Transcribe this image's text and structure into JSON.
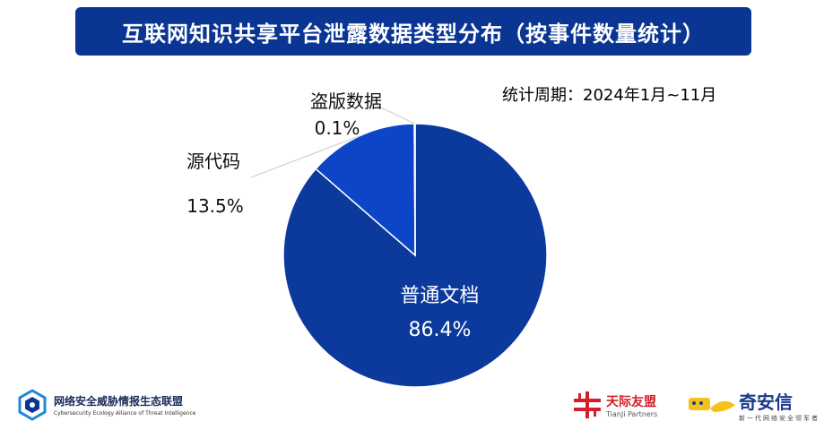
{
  "title": "互联网知识共享平台泄露数据类型分布（按事件数量统计）",
  "period": "统计周期：2024年1月~11月",
  "chart_data": {
    "type": "pie",
    "start_angle_deg": 0,
    "slices": [
      {
        "label": "普通文档",
        "value": 86.4,
        "value_label": "86.4%",
        "color": "#0b3a9c",
        "label_color": "#ffffff"
      },
      {
        "label": "源代码",
        "value": 13.5,
        "value_label": "13.5%",
        "color": "#0c45c8",
        "label_color": "#111111"
      },
      {
        "label": "盗版数据",
        "value": 0.1,
        "value_label": "0.1%",
        "color": "#1c55d8",
        "label_color": "#111111"
      }
    ]
  },
  "footer": {
    "left_org": "网络安全威胁情报生态联盟",
    "left_org_en": "Cybersecurity Ecology Alliance of Threat Intelligence",
    "tianji": "天际友盟",
    "tianji_en": "TianJi Partners",
    "qax": "奇安信",
    "qax_sub": "新一代网络安全领军者",
    "colors": {
      "navy": "#0a3592",
      "red": "#d3202a",
      "qax_yellow": "#f4c21a"
    }
  }
}
